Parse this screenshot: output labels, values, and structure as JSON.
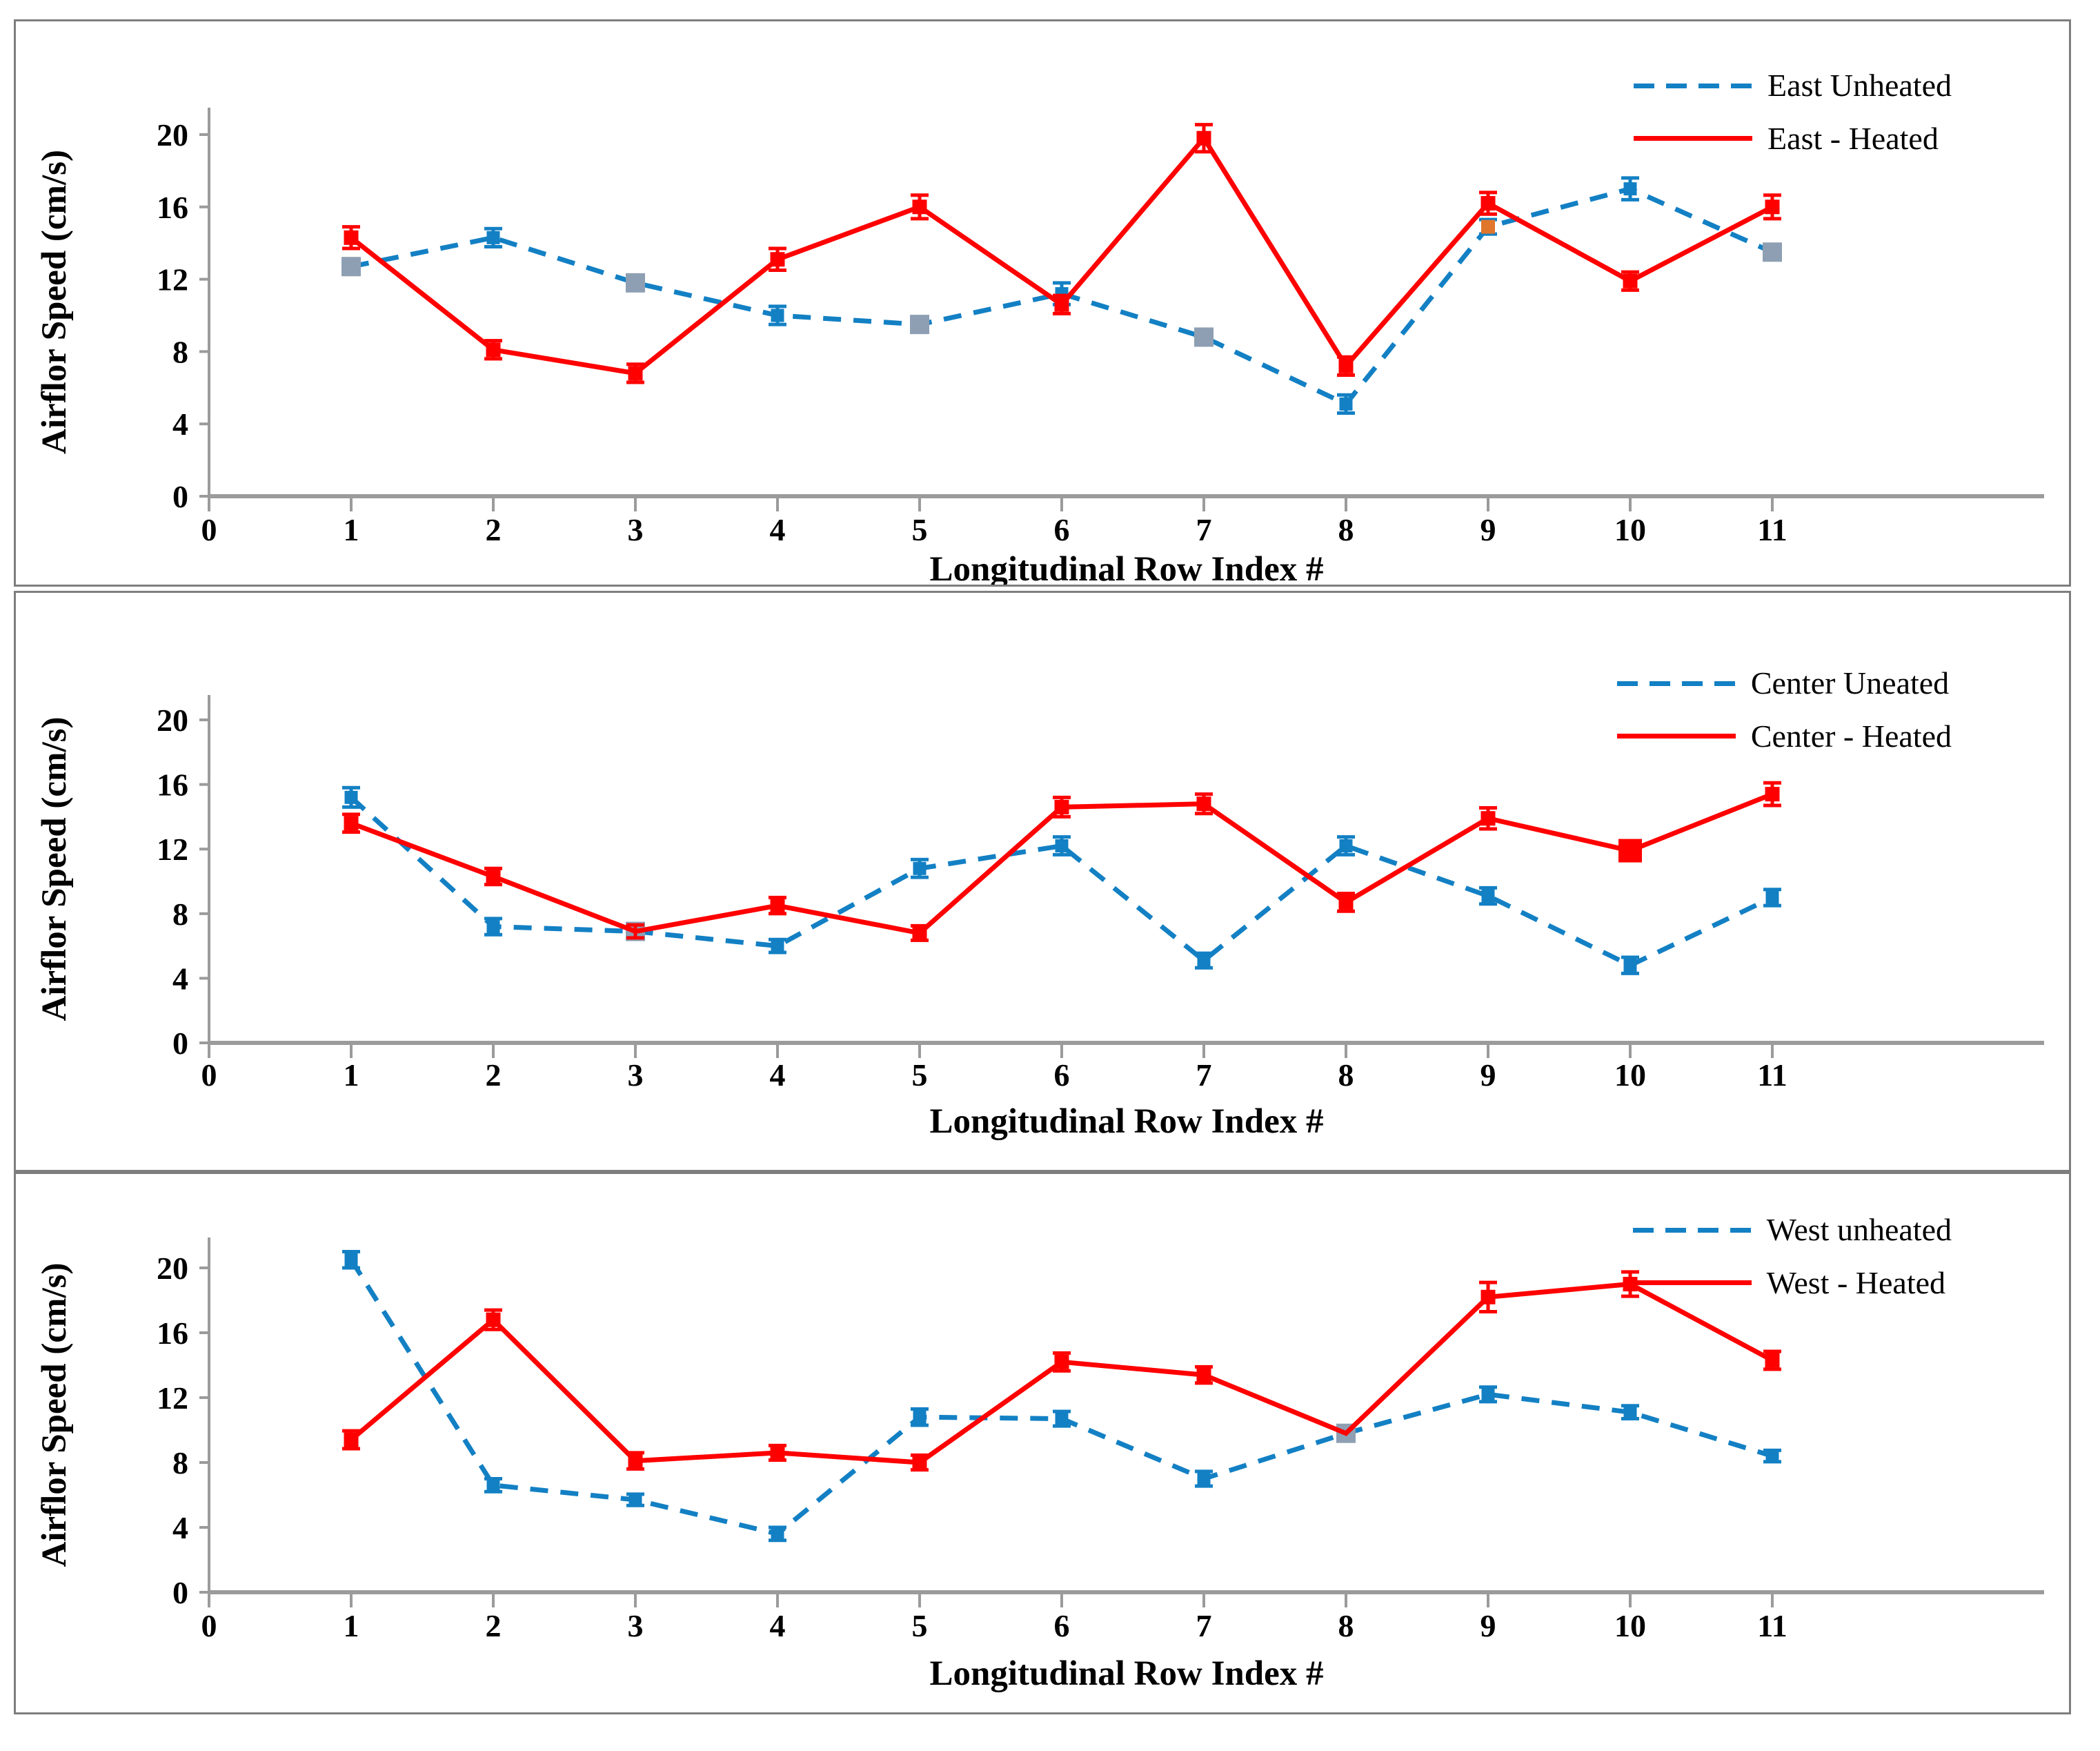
{
  "figure": {
    "ylabel": "Airflor Speed (cm/s)",
    "xlabel": "Longitudinal Row Index #",
    "x_ticks": [
      0,
      1,
      2,
      3,
      4,
      5,
      6,
      7,
      8,
      9,
      10,
      11
    ],
    "y_ticks": [
      0,
      4,
      8,
      12,
      16,
      20
    ],
    "colors": {
      "blue": "#1380C4",
      "red": "#FF0000",
      "gray": "#8E9FB3",
      "orange": "#E0762C",
      "axis": "#9B9B9B",
      "border": "#7E7E7E"
    }
  },
  "chart_data": [
    {
      "type": "line",
      "id": "east",
      "x": [
        1,
        2,
        3,
        4,
        5,
        6,
        7,
        8,
        9,
        10,
        11
      ],
      "x_ticks": [
        0,
        1,
        2,
        3,
        4,
        5,
        6,
        7,
        8,
        9,
        10,
        11
      ],
      "y_ticks": [
        0,
        4,
        8,
        12,
        16,
        20
      ],
      "ylim": [
        0,
        22
      ],
      "xlabel": "Longitudinal Row Index #",
      "ylabel": "Airflor Speed (cm/s)",
      "grid": false,
      "legend_position": "top-right",
      "series": [
        {
          "name": "East Unheated",
          "style": "dashed",
          "color": "blue",
          "values": [
            12.7,
            14.3,
            11.8,
            10.0,
            9.5,
            11.2,
            8.8,
            5.1,
            14.9,
            17.0,
            13.5
          ],
          "errors": [
            0.4,
            0.5,
            0.3,
            0.5,
            0.3,
            0.6,
            0.3,
            0.5,
            0.4,
            0.6,
            0.4
          ],
          "marker_colors": [
            "gray",
            "blue",
            "gray",
            "blue",
            "gray",
            "blue",
            "gray",
            "blue",
            "orange",
            "blue",
            "gray"
          ]
        },
        {
          "name": "East - Heated",
          "style": "solid",
          "color": "red",
          "values": [
            14.3,
            8.1,
            6.8,
            13.1,
            16.0,
            10.6,
            19.8,
            7.2,
            16.2,
            11.9,
            16.0
          ],
          "errors": [
            0.6,
            0.5,
            0.5,
            0.6,
            0.65,
            0.5,
            0.75,
            0.5,
            0.6,
            0.5,
            0.65
          ],
          "marker_colors": [
            "red",
            "red",
            "red",
            "red",
            "red",
            "red",
            "red",
            "red",
            "red",
            "red",
            "red"
          ]
        }
      ]
    },
    {
      "type": "line",
      "id": "center",
      "x": [
        1,
        2,
        3,
        4,
        5,
        6,
        7,
        8,
        9,
        10,
        11
      ],
      "x_ticks": [
        0,
        1,
        2,
        3,
        4,
        5,
        6,
        7,
        8,
        9,
        10,
        11
      ],
      "y_ticks": [
        0,
        4,
        8,
        12,
        16,
        20
      ],
      "ylim": [
        0,
        22
      ],
      "xlabel": "Longitudinal Row Index #",
      "ylabel": "Airflor Speed (cm/s)",
      "grid": false,
      "legend_position": "top-right",
      "series": [
        {
          "name": "Center Uneated",
          "style": "dashed",
          "color": "blue",
          "values": [
            15.2,
            7.2,
            6.9,
            6.0,
            10.8,
            12.2,
            5.1,
            12.2,
            9.1,
            4.8,
            9.0
          ],
          "errors": [
            0.6,
            0.5,
            0.3,
            0.4,
            0.55,
            0.55,
            0.45,
            0.55,
            0.5,
            0.5,
            0.5
          ],
          "marker_colors": [
            "blue",
            "blue",
            "gray",
            "blue",
            "blue",
            "blue",
            "blue",
            "blue",
            "blue",
            "blue",
            "blue"
          ]
        },
        {
          "name": "Center - Heated",
          "style": "solid",
          "color": "red",
          "values": [
            13.6,
            10.3,
            6.9,
            8.5,
            6.8,
            14.6,
            14.8,
            8.7,
            13.9,
            11.9,
            15.4
          ],
          "errors": [
            0.55,
            0.5,
            0.4,
            0.5,
            0.45,
            0.6,
            0.6,
            0.55,
            0.65,
            0,
            0.7
          ],
          "marker_colors": [
            "red",
            "red",
            "red",
            "red",
            "red",
            "red",
            "red",
            "red",
            "red",
            "red",
            "red"
          ],
          "marker_sizes": [
            21,
            21,
            0,
            21,
            21,
            21,
            21,
            21,
            21,
            34,
            21
          ]
        }
      ]
    },
    {
      "type": "line",
      "id": "west",
      "x": [
        1,
        2,
        3,
        4,
        5,
        6,
        7,
        8,
        9,
        10,
        11
      ],
      "x_ticks": [
        0,
        1,
        2,
        3,
        4,
        5,
        6,
        7,
        8,
        9,
        10,
        11
      ],
      "y_ticks": [
        0,
        4,
        8,
        12,
        16,
        20
      ],
      "ylim": [
        0,
        22
      ],
      "xlabel": "Longitudinal Row Index #",
      "ylabel": "Airflor Speed (cm/s)",
      "grid": false,
      "legend_position": "top-right",
      "series": [
        {
          "name": "West unheated",
          "style": "dashed",
          "color": "blue",
          "values": [
            20.5,
            6.6,
            5.7,
            3.6,
            10.8,
            10.7,
            7.0,
            9.8,
            12.2,
            11.1,
            8.4
          ],
          "errors": [
            0.5,
            0.4,
            0.35,
            0.4,
            0.5,
            0.45,
            0.45,
            0,
            0.45,
            0.4,
            0.35
          ],
          "marker_colors": [
            "blue",
            "blue",
            "blue",
            "blue",
            "blue",
            "blue",
            "blue",
            "gray",
            "blue",
            "blue",
            "blue"
          ]
        },
        {
          "name": "West - Heated",
          "style": "solid",
          "color": "red",
          "values": [
            9.4,
            16.8,
            8.1,
            8.6,
            8.0,
            14.2,
            13.4,
            9.8,
            18.2,
            19.0,
            14.3
          ],
          "errors": [
            0.55,
            0.6,
            0.5,
            0.45,
            0.45,
            0.55,
            0.5,
            0,
            0.9,
            0.75,
            0.55
          ],
          "marker_colors": [
            "red",
            "red",
            "red",
            "red",
            "red",
            "red",
            "red",
            "red",
            "red",
            "red",
            "red"
          ],
          "marker_sizes": [
            21,
            21,
            21,
            21,
            21,
            21,
            21,
            0,
            21,
            21,
            21
          ]
        }
      ]
    }
  ]
}
